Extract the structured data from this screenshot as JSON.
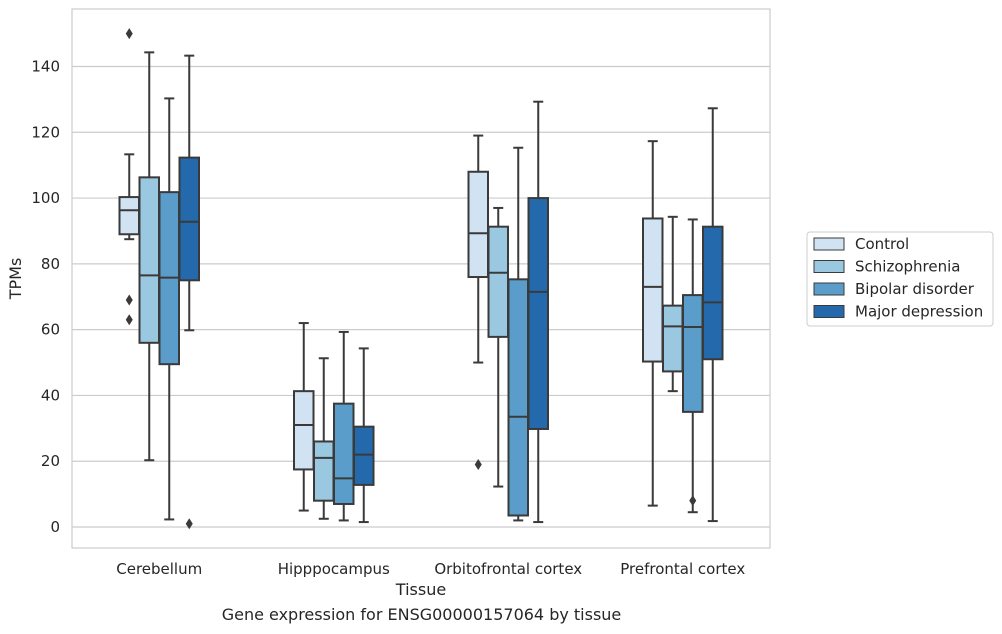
{
  "chart_data": {
    "type": "box",
    "title": "",
    "xlabel": "Tissue",
    "ylabel": "TPMs",
    "caption": "Gene expression for ENSG00000157064 by tissue",
    "categories": [
      "Cerebellum",
      "Hipppocampus",
      "Orbitofrontal cortex",
      "Prefrontal cortex"
    ],
    "yticks": [
      0,
      20,
      40,
      60,
      80,
      100,
      120,
      140
    ],
    "ylim": [
      -6.5,
      158
    ],
    "grid": "horizontal",
    "legend_position": "right",
    "series": [
      {
        "name": "Control",
        "color": "#d1e2f2",
        "boxes": [
          {
            "whislo": 87.5,
            "q1": 89,
            "med": 96.3,
            "q3": 100.3,
            "whishi": 113.3,
            "fliers": [
              150,
              69,
              63
            ]
          },
          {
            "whislo": 5,
            "q1": 17.5,
            "med": 31,
            "q3": 41.3,
            "whishi": 62,
            "fliers": []
          },
          {
            "whislo": 50,
            "q1": 76,
            "med": 89.3,
            "q3": 108,
            "whishi": 119,
            "fliers": [
              19
            ]
          },
          {
            "whislo": 6.5,
            "q1": 50.3,
            "med": 73,
            "q3": 93.8,
            "whishi": 117.3,
            "fliers": []
          }
        ]
      },
      {
        "name": "Schizophrenia",
        "color": "#9ac8e0",
        "boxes": [
          {
            "whislo": 20.3,
            "q1": 56,
            "med": 76.5,
            "q3": 106.3,
            "whishi": 144.3,
            "fliers": []
          },
          {
            "whislo": 2.5,
            "q1": 8,
            "med": 21,
            "q3": 26,
            "whishi": 51.3,
            "fliers": []
          },
          {
            "whislo": 12.3,
            "q1": 57.8,
            "med": 77.3,
            "q3": 91.3,
            "whishi": 97,
            "fliers": []
          },
          {
            "whislo": 41.3,
            "q1": 47.3,
            "med": 61,
            "q3": 67.3,
            "whishi": 94.3,
            "fliers": []
          }
        ]
      },
      {
        "name": "Bipolar disorder",
        "color": "#5a9dcb",
        "boxes": [
          {
            "whislo": 2.3,
            "q1": 49.5,
            "med": 75.8,
            "q3": 101.8,
            "whishi": 130.3,
            "fliers": []
          },
          {
            "whislo": 2,
            "q1": 7,
            "med": 14.8,
            "q3": 37.5,
            "whishi": 59.3,
            "fliers": []
          },
          {
            "whislo": 2,
            "q1": 3.5,
            "med": 33.5,
            "q3": 75.3,
            "whishi": 115.3,
            "fliers": []
          },
          {
            "whislo": 4.5,
            "q1": 35,
            "med": 60.8,
            "q3": 70.5,
            "whishi": 93.5,
            "fliers": [
              8
            ]
          }
        ]
      },
      {
        "name": "Major depression",
        "color": "#2369ac",
        "boxes": [
          {
            "whislo": 59.8,
            "q1": 75,
            "med": 92.8,
            "q3": 112.3,
            "whishi": 143.3,
            "fliers": [
              1
            ]
          },
          {
            "whislo": 1.5,
            "q1": 12.8,
            "med": 22,
            "q3": 30.5,
            "whishi": 54.3,
            "fliers": []
          },
          {
            "whislo": 1.5,
            "q1": 29.8,
            "med": 71.5,
            "q3": 100,
            "whishi": 129.3,
            "fliers": []
          },
          {
            "whislo": 1.8,
            "q1": 51,
            "med": 68.3,
            "q3": 91.3,
            "whishi": 127.3,
            "fliers": []
          }
        ]
      }
    ]
  }
}
